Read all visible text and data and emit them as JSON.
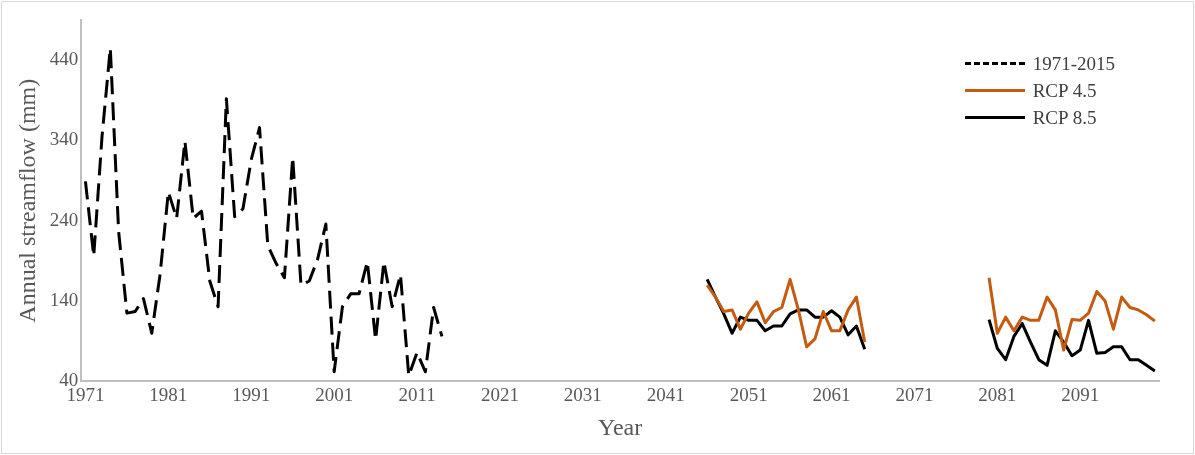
{
  "chart_data": {
    "type": "line",
    "xlabel": "Year",
    "ylabel": "Annual streamflow (mm)",
    "xlim": [
      1970.5,
      2100.5
    ],
    "xticks": [
      1971,
      1981,
      1991,
      2001,
      2011,
      2021,
      2031,
      2041,
      2051,
      2061,
      2071,
      2081,
      2091
    ],
    "ylim": [
      40,
      490
    ],
    "yticks": [
      40,
      140,
      240,
      340,
      440
    ],
    "grid": false,
    "legend": "top right",
    "marker": "none",
    "series": [
      {
        "name": "1971-2015",
        "color": "#000000",
        "line_style": "dashed",
        "x": [
          1971,
          1972,
          1973,
          1974,
          1975,
          1976,
          1977,
          1978,
          1979,
          1980,
          1981,
          1982,
          1983,
          1984,
          1985,
          1986,
          1987,
          1988,
          1989,
          1990,
          1991,
          1992,
          1993,
          1994,
          1995,
          1996,
          1997,
          1998,
          1999,
          2000,
          2001,
          2002,
          2003,
          2004,
          2005,
          2006,
          2007,
          2008,
          2009,
          2010,
          2011,
          2012,
          2013,
          2014
        ],
        "values": [
          289,
          196,
          345,
          455,
          227,
          125,
          127,
          143,
          100,
          173,
          276,
          243,
          339,
          243,
          252,
          165,
          133,
          392,
          245,
          255,
          316,
          356,
          209,
          187,
          169,
          319,
          160,
          165,
          192,
          236,
          52,
          133,
          149,
          149,
          189,
          92,
          189,
          133,
          173,
          47,
          76,
          52,
          132,
          96
        ]
      },
      {
        "name": "RCP 4.5",
        "color": "#c55a11",
        "line_style": "solid",
        "x": [
          2046,
          2047,
          2048,
          2049,
          2050,
          2051,
          2052,
          2053,
          2054,
          2055,
          2056,
          2057,
          2058,
          2059,
          2060,
          2061,
          2062,
          2063,
          2064,
          2065,
          2066,
          2067,
          2068,
          2069,
          2070,
          2071,
          2072,
          2073,
          2074,
          2075,
          2076,
          2077,
          2078,
          2079,
          2080,
          2081,
          2082,
          2083,
          2084,
          2085,
          2086,
          2087,
          2088,
          2089,
          2090,
          2091,
          2092,
          2093,
          2094,
          2095,
          2096,
          2097,
          2098,
          2099,
          2100
        ],
        "values": [
          160,
          145,
          127,
          129,
          105,
          125,
          139,
          113,
          127,
          132,
          167,
          129,
          83,
          93,
          127,
          103,
          103,
          129,
          145,
          89,
          null,
          null,
          null,
          null,
          null,
          null,
          null,
          null,
          null,
          null,
          null,
          null,
          null,
          null,
          169,
          100,
          120,
          103,
          120,
          116,
          116,
          145,
          129,
          79,
          117,
          116,
          125,
          152,
          140,
          105,
          145,
          132,
          129,
          123,
          115
        ]
      },
      {
        "name": "RCP 8.5",
        "color": "#000000",
        "line_style": "solid",
        "x": [
          2046,
          2047,
          2048,
          2049,
          2050,
          2051,
          2052,
          2053,
          2054,
          2055,
          2056,
          2057,
          2058,
          2059,
          2060,
          2061,
          2062,
          2063,
          2064,
          2065,
          2066,
          2067,
          2068,
          2069,
          2070,
          2071,
          2072,
          2073,
          2074,
          2075,
          2076,
          2077,
          2078,
          2079,
          2080,
          2081,
          2082,
          2083,
          2084,
          2085,
          2086,
          2087,
          2088,
          2089,
          2090,
          2091,
          2092,
          2093,
          2094,
          2095,
          2096,
          2097,
          2098,
          2099,
          2100
        ],
        "values": [
          167,
          145,
          124,
          100,
          120,
          116,
          116,
          103,
          109,
          109,
          124,
          129,
          129,
          120,
          120,
          128,
          120,
          98,
          109,
          80,
          null,
          null,
          null,
          null,
          null,
          null,
          null,
          null,
          null,
          null,
          null,
          null,
          null,
          null,
          117,
          81,
          67,
          96,
          112,
          89,
          67,
          60,
          103,
          89,
          72,
          79,
          116,
          75,
          76,
          83,
          83,
          67,
          67,
          60,
          53
        ]
      }
    ]
  }
}
